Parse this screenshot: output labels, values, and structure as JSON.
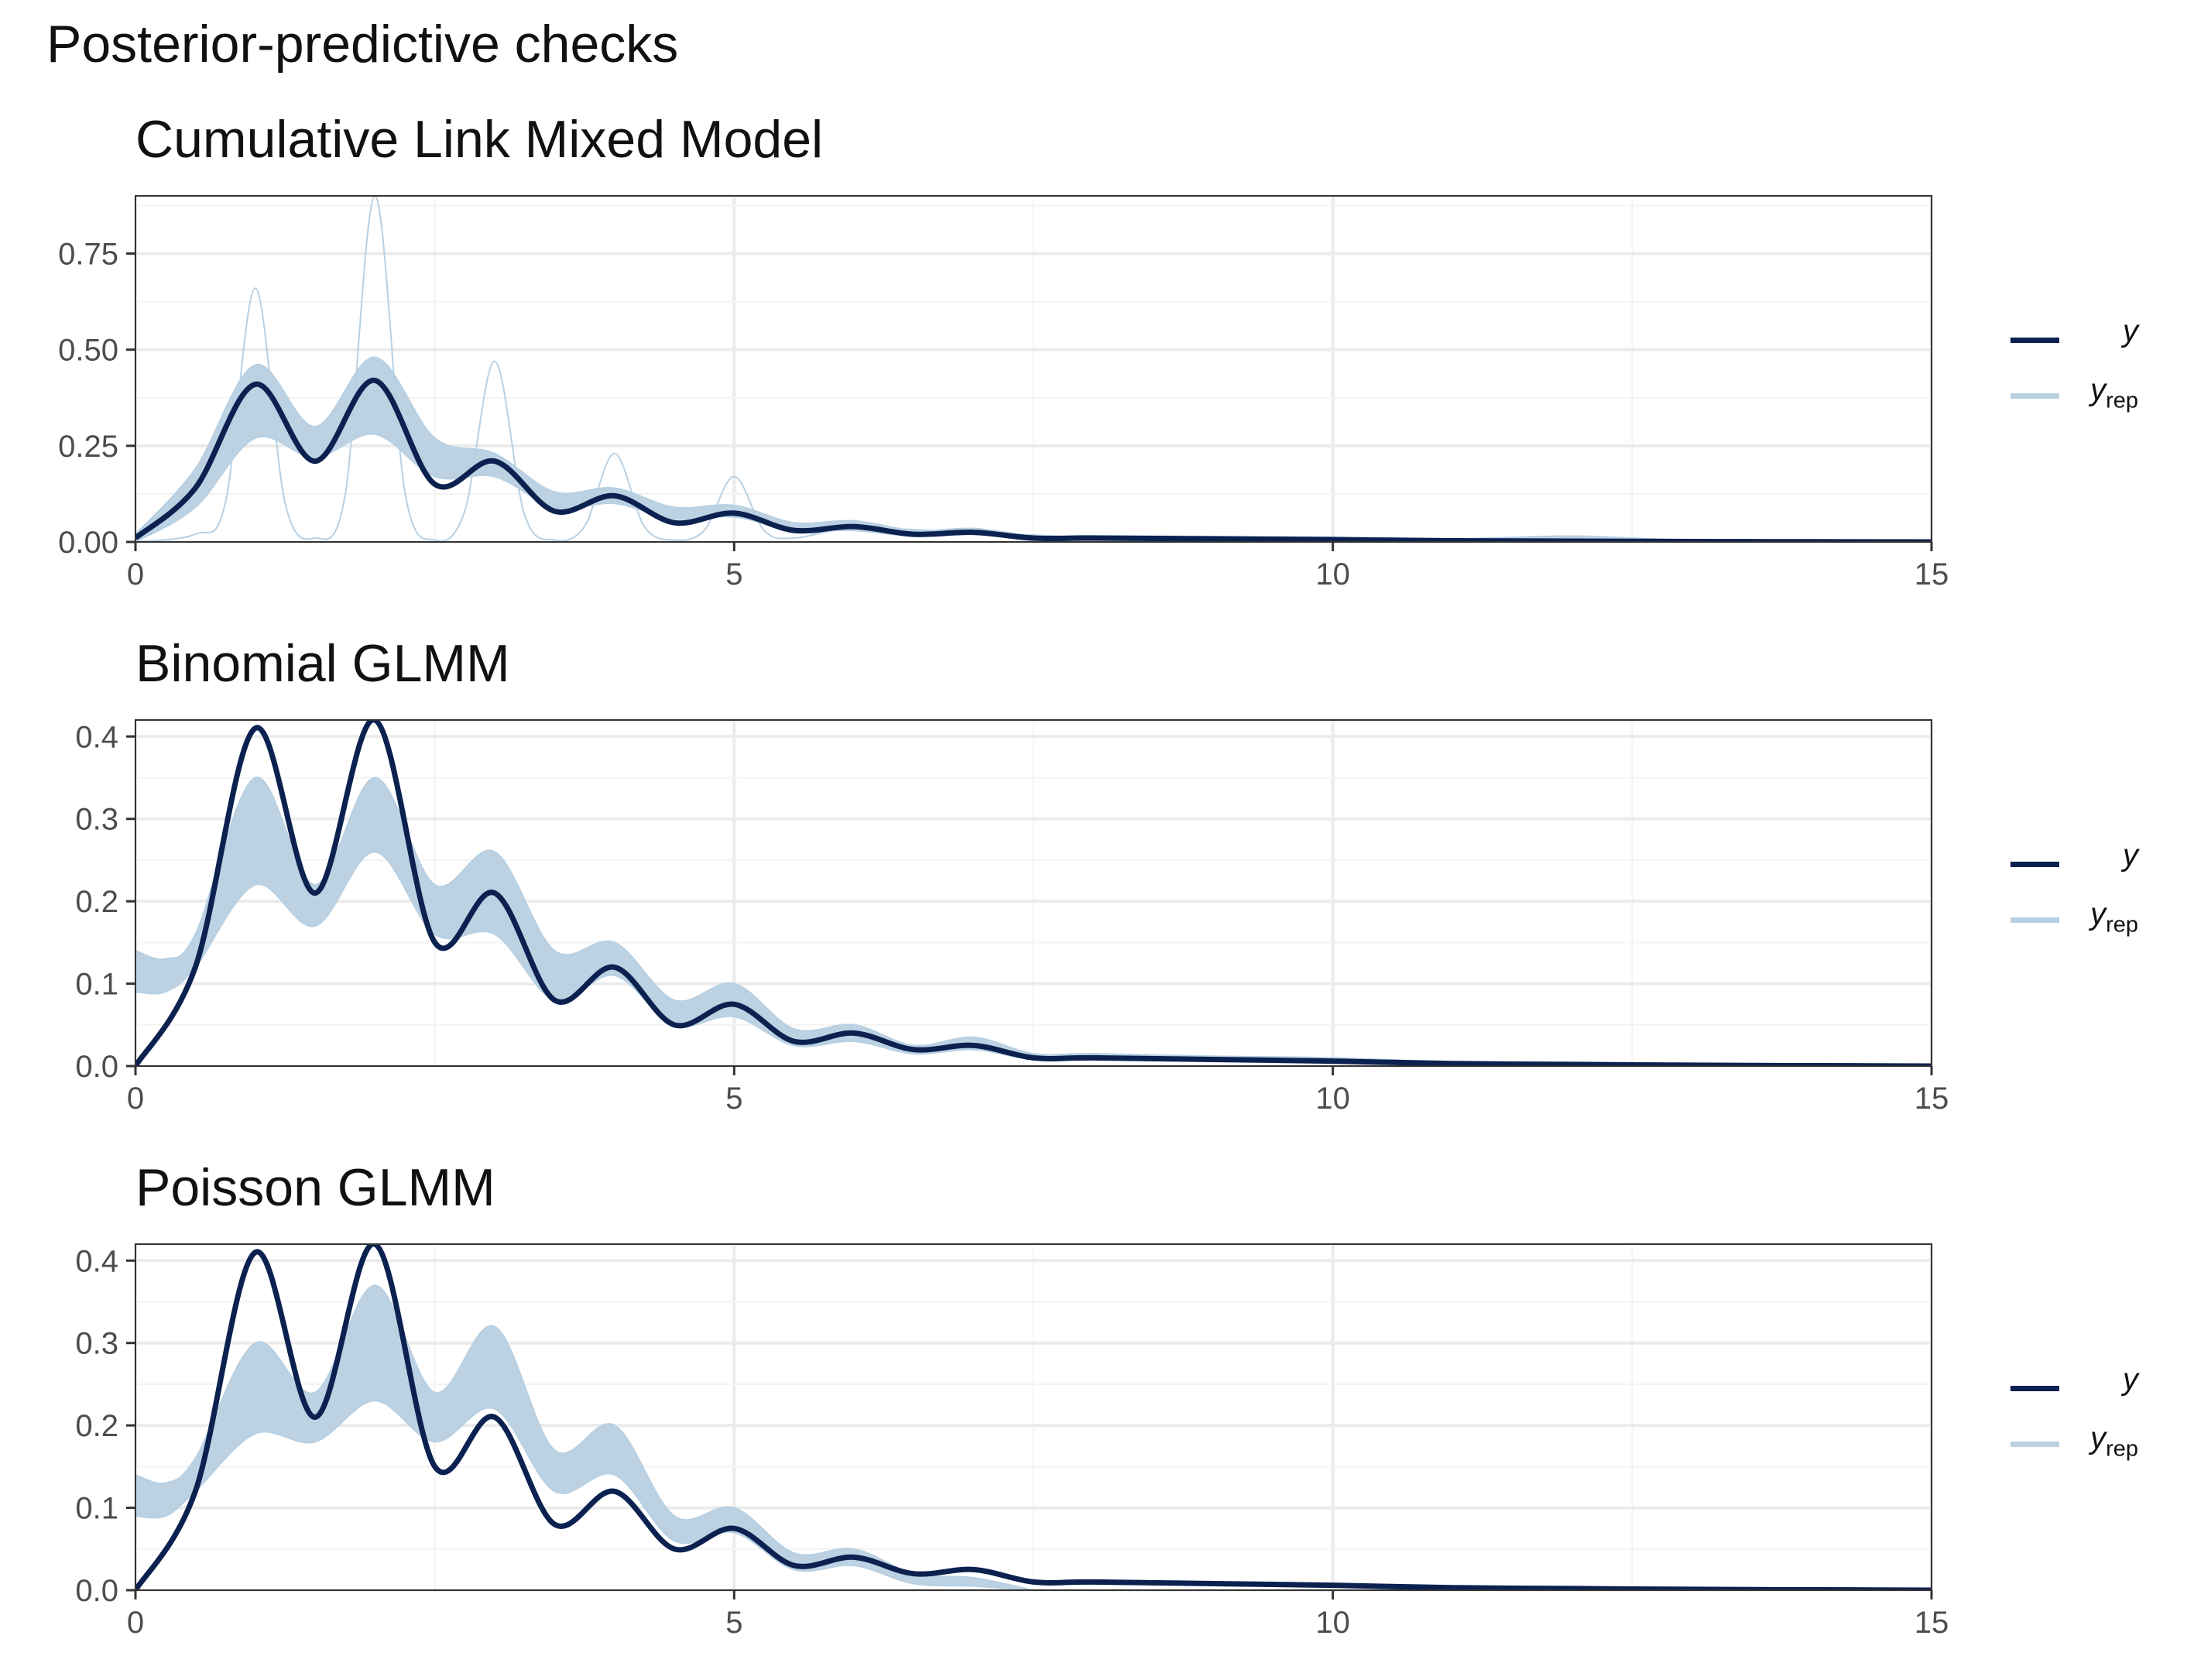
{
  "figure": {
    "title": "Posterior-predictive checks"
  },
  "colors": {
    "y": "#0b2150",
    "yrep": "#b8d0e2",
    "grid_major": "#ebebeb",
    "grid_minor": "#f3f3f3",
    "panel_border": "#333333"
  },
  "chart_data": [
    {
      "type": "line",
      "title": "Cumulative Link Mixed Model",
      "xlim": [
        0,
        15
      ],
      "ylim": [
        0,
        0.9
      ],
      "x_ticks": [
        "0",
        "5",
        "10",
        "15"
      ],
      "y_ticks": [
        "0.00",
        "0.25",
        "0.50",
        "0.75"
      ],
      "legend": {
        "position": "right",
        "entries": [
          {
            "label": "y"
          },
          {
            "label": "y",
            "sub": "rep"
          }
        ]
      },
      "series": [
        {
          "name": "y",
          "x": [
            0,
            0.5,
            1,
            1.5,
            2,
            2.5,
            3,
            3.5,
            4,
            4.5,
            5,
            5.5,
            6,
            6.5,
            7,
            7.5,
            8,
            9,
            10,
            11,
            12,
            13,
            14,
            15
          ],
          "values": [
            0.01,
            0.14,
            0.41,
            0.21,
            0.42,
            0.15,
            0.21,
            0.08,
            0.12,
            0.05,
            0.075,
            0.03,
            0.04,
            0.02,
            0.025,
            0.01,
            0.01,
            0.008,
            0.006,
            0.003,
            0.002,
            0.001,
            0.0005,
            0
          ]
        },
        {
          "name": "y_rep (band)",
          "x": [
            0,
            0.5,
            1,
            1.5,
            2,
            2.5,
            3,
            3.5,
            4,
            4.5,
            5,
            5.5,
            6,
            6.5,
            7,
            7.5,
            8,
            9,
            10,
            11,
            12,
            13,
            14,
            15
          ],
          "lower": [
            0.0,
            0.09,
            0.27,
            0.22,
            0.28,
            0.17,
            0.17,
            0.09,
            0.1,
            0.06,
            0.065,
            0.03,
            0.03,
            0.015,
            0.02,
            0.008,
            0.008,
            0.006,
            0.004,
            0.002,
            0.002,
            0.001,
            0.0005,
            0
          ],
          "upper": [
            0.02,
            0.19,
            0.46,
            0.3,
            0.48,
            0.27,
            0.23,
            0.13,
            0.14,
            0.09,
            0.095,
            0.05,
            0.055,
            0.03,
            0.035,
            0.016,
            0.016,
            0.014,
            0.012,
            0.008,
            0.015,
            0.004,
            0.002,
            0
          ]
        },
        {
          "name": "y_rep (spiky draw)",
          "x": [
            0,
            0.5,
            0.75,
            1,
            1.25,
            1.5,
            1.75,
            2,
            2.25,
            2.5,
            2.75,
            3,
            3.25,
            3.5,
            3.75,
            4,
            4.25,
            4.5,
            4.75,
            5,
            5.25,
            5.5,
            6,
            7,
            8,
            9,
            10,
            11,
            12,
            13,
            15
          ],
          "values": [
            0.0,
            0.02,
            0.1,
            0.66,
            0.1,
            0.01,
            0.12,
            0.9,
            0.13,
            0.005,
            0.08,
            0.47,
            0.07,
            0.005,
            0.04,
            0.23,
            0.04,
            0.005,
            0.03,
            0.17,
            0.03,
            0.01,
            0.035,
            0.025,
            0.012,
            0.01,
            0.008,
            0.005,
            0.015,
            0.003,
            0
          ]
        }
      ]
    },
    {
      "type": "line",
      "title": "Binomial GLMM",
      "xlim": [
        0,
        15
      ],
      "ylim": [
        0,
        0.42
      ],
      "x_ticks": [
        "0",
        "5",
        "10",
        "15"
      ],
      "y_ticks": [
        "0.0",
        "0.1",
        "0.2",
        "0.3",
        "0.4"
      ],
      "legend": {
        "position": "right",
        "entries": [
          {
            "label": "y"
          },
          {
            "label": "y",
            "sub": "rep"
          }
        ]
      },
      "series": [
        {
          "name": "y",
          "x": [
            0,
            0.5,
            1,
            1.5,
            2,
            2.5,
            3,
            3.5,
            4,
            4.5,
            5,
            5.5,
            6,
            6.5,
            7,
            7.5,
            8,
            9,
            10,
            11,
            12,
            13,
            14,
            15
          ],
          "values": [
            0.0,
            0.12,
            0.41,
            0.21,
            0.42,
            0.15,
            0.21,
            0.08,
            0.12,
            0.05,
            0.075,
            0.03,
            0.04,
            0.02,
            0.025,
            0.01,
            0.01,
            0.008,
            0.006,
            0.003,
            0.002,
            0.001,
            0.0005,
            0
          ]
        },
        {
          "name": "y_rep (band)",
          "x": [
            0,
            0.25,
            0.5,
            1,
            1.5,
            2,
            2.5,
            3,
            3.5,
            4,
            4.5,
            5,
            5.5,
            6,
            6.5,
            7,
            7.5,
            8,
            9,
            10,
            11,
            12,
            13,
            14,
            15
          ],
          "lower": [
            0.09,
            0.09,
            0.12,
            0.22,
            0.17,
            0.26,
            0.16,
            0.16,
            0.08,
            0.11,
            0.05,
            0.06,
            0.025,
            0.03,
            0.015,
            0.02,
            0.008,
            0.008,
            0.006,
            0.004,
            0.002,
            0.001,
            0.0005,
            0.0002,
            0
          ],
          "upper": [
            0.14,
            0.13,
            0.16,
            0.35,
            0.22,
            0.35,
            0.22,
            0.26,
            0.14,
            0.15,
            0.08,
            0.1,
            0.045,
            0.05,
            0.025,
            0.035,
            0.015,
            0.015,
            0.012,
            0.01,
            0.005,
            0.003,
            0.001,
            0.0005,
            0
          ]
        }
      ]
    },
    {
      "type": "line",
      "title": "Poisson GLMM",
      "xlim": [
        0,
        15
      ],
      "ylim": [
        0,
        0.42
      ],
      "x_ticks": [
        "0",
        "5",
        "10",
        "15"
      ],
      "y_ticks": [
        "0.0",
        "0.1",
        "0.2",
        "0.3",
        "0.4"
      ],
      "legend": {
        "position": "right",
        "entries": [
          {
            "label": "y"
          },
          {
            "label": "y",
            "sub": "rep"
          }
        ]
      },
      "series": [
        {
          "name": "y",
          "x": [
            0,
            0.5,
            1,
            1.5,
            2,
            2.5,
            3,
            3.5,
            4,
            4.5,
            5,
            5.5,
            6,
            6.5,
            7,
            7.5,
            8,
            9,
            10,
            11,
            12,
            13,
            14,
            15
          ],
          "values": [
            0.0,
            0.12,
            0.41,
            0.21,
            0.42,
            0.15,
            0.21,
            0.08,
            0.12,
            0.05,
            0.075,
            0.03,
            0.04,
            0.02,
            0.025,
            0.01,
            0.01,
            0.008,
            0.006,
            0.003,
            0.002,
            0.001,
            0.0005,
            0
          ]
        },
        {
          "name": "y_rep (band)",
          "x": [
            0,
            0.25,
            0.5,
            1,
            1.5,
            2,
            2.5,
            3,
            3.5,
            4,
            4.5,
            5,
            5.5,
            6,
            6.5,
            7,
            7.5
          ],
          "lower": [
            0.09,
            0.09,
            0.12,
            0.19,
            0.18,
            0.23,
            0.18,
            0.22,
            0.12,
            0.14,
            0.06,
            0.07,
            0.025,
            0.03,
            0.008,
            0.005,
            0
          ],
          "upper": [
            0.14,
            0.13,
            0.16,
            0.3,
            0.24,
            0.37,
            0.24,
            0.32,
            0.17,
            0.2,
            0.09,
            0.1,
            0.045,
            0.05,
            0.02,
            0.015,
            0
          ]
        }
      ]
    }
  ]
}
